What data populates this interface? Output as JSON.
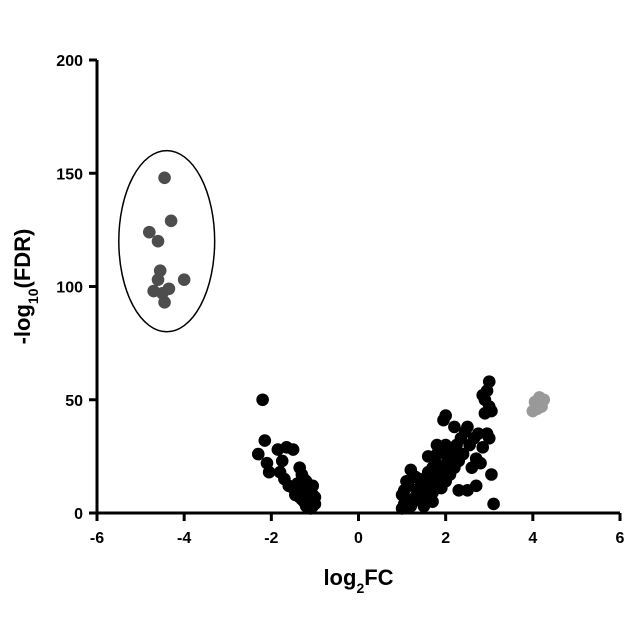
{
  "chart_data": {
    "type": "scatter",
    "title": "",
    "xlabel": {
      "base": "log",
      "sub": "2",
      "rest": "FC"
    },
    "ylabel": {
      "pre": "-log",
      "sub": "10",
      "post": "(FDR)"
    },
    "xlim": [
      -6,
      6
    ],
    "ylim": [
      0,
      200
    ],
    "xticks": [
      -6,
      -4,
      -2,
      0,
      2,
      4,
      6
    ],
    "yticks": [
      0,
      50,
      100,
      150,
      200
    ],
    "grid": false,
    "legend": "none",
    "annotations": [
      {
        "type": "ellipse",
        "center": [
          -4.4,
          120
        ],
        "radius": [
          2.2,
          40
        ],
        "outline": "#000000"
      }
    ],
    "series": [
      {
        "color": "#4d4d4d",
        "points": [
          [
            -4.45,
            148
          ],
          [
            -4.3,
            129
          ],
          [
            -4.8,
            124
          ],
          [
            -4.6,
            120
          ],
          [
            -4.55,
            107
          ],
          [
            -4.6,
            103
          ],
          [
            -4.0,
            103
          ],
          [
            -4.7,
            98
          ],
          [
            -4.5,
            97
          ],
          [
            -4.35,
            99
          ],
          [
            -4.45,
            93
          ]
        ]
      },
      {
        "color": "#000000",
        "points": [
          [
            -2.2,
            50
          ],
          [
            -2.15,
            32
          ],
          [
            -2.3,
            26
          ],
          [
            -2.1,
            22
          ],
          [
            -2.05,
            18
          ],
          [
            -1.85,
            28
          ],
          [
            -1.75,
            23
          ],
          [
            -1.65,
            29
          ],
          [
            -1.5,
            28
          ],
          [
            -1.8,
            18
          ],
          [
            -1.7,
            15
          ],
          [
            -1.6,
            12
          ],
          [
            -1.5,
            11
          ],
          [
            -1.4,
            13
          ],
          [
            -1.35,
            20
          ],
          [
            -1.3,
            17
          ],
          [
            -1.25,
            15
          ],
          [
            -1.2,
            14
          ],
          [
            -1.15,
            12
          ],
          [
            -1.1,
            11
          ],
          [
            -1.45,
            8
          ],
          [
            -1.35,
            7
          ],
          [
            -1.3,
            6
          ],
          [
            -1.25,
            5
          ],
          [
            -1.2,
            6
          ],
          [
            -1.15,
            4
          ],
          [
            -1.1,
            5
          ],
          [
            -1.05,
            3
          ],
          [
            -1.0,
            4
          ],
          [
            -1.1,
            2
          ],
          [
            -1.2,
            3
          ],
          [
            -1.3,
            9
          ],
          [
            -1.4,
            10
          ],
          [
            -1.05,
            8
          ],
          [
            -1.15,
            9
          ],
          [
            -1.25,
            11
          ],
          [
            -1.0,
            7
          ],
          [
            -1.05,
            12
          ],
          [
            -1.15,
            7
          ],
          [
            1.0,
            2
          ],
          [
            1.05,
            4
          ],
          [
            1.1,
            6
          ],
          [
            1.0,
            8
          ],
          [
            1.05,
            10
          ],
          [
            1.15,
            12
          ],
          [
            1.2,
            3
          ],
          [
            1.25,
            5
          ],
          [
            1.3,
            7
          ],
          [
            1.35,
            9
          ],
          [
            1.1,
            14
          ],
          [
            1.2,
            19
          ],
          [
            1.3,
            16
          ],
          [
            1.4,
            11
          ],
          [
            1.45,
            6
          ],
          [
            1.5,
            8
          ],
          [
            1.55,
            13
          ],
          [
            1.6,
            18
          ],
          [
            1.6,
            10
          ],
          [
            1.65,
            15
          ],
          [
            1.7,
            20
          ],
          [
            1.7,
            9
          ],
          [
            1.75,
            23
          ],
          [
            1.8,
            13
          ],
          [
            1.8,
            26
          ],
          [
            1.85,
            17
          ],
          [
            1.9,
            28
          ],
          [
            1.9,
            11
          ],
          [
            1.95,
            21
          ],
          [
            2.0,
            30
          ],
          [
            2.0,
            14
          ],
          [
            2.05,
            24
          ],
          [
            2.1,
            17
          ],
          [
            2.15,
            27
          ],
          [
            2.2,
            20
          ],
          [
            2.25,
            30
          ],
          [
            2.3,
            23
          ],
          [
            2.35,
            33
          ],
          [
            2.4,
            26
          ],
          [
            2.45,
            36
          ],
          [
            1.95,
            41
          ],
          [
            2.0,
            43
          ],
          [
            2.5,
            38
          ],
          [
            2.55,
            30
          ],
          [
            2.6,
            20
          ],
          [
            2.65,
            33
          ],
          [
            2.7,
            24
          ],
          [
            2.75,
            35
          ],
          [
            2.8,
            22
          ],
          [
            2.85,
            29
          ],
          [
            2.9,
            44
          ],
          [
            2.85,
            52
          ],
          [
            2.9,
            50
          ],
          [
            2.95,
            54
          ],
          [
            3.0,
            58
          ],
          [
            3.0,
            47
          ],
          [
            3.05,
            45
          ],
          [
            2.95,
            35
          ],
          [
            3.0,
            33
          ],
          [
            3.05,
            17
          ],
          [
            3.1,
            4
          ],
          [
            2.3,
            10
          ],
          [
            2.5,
            10
          ],
          [
            2.7,
            12
          ],
          [
            1.6,
            25
          ],
          [
            1.8,
            30
          ],
          [
            2.2,
            38
          ],
          [
            1.4,
            15
          ],
          [
            1.5,
            3
          ],
          [
            1.7,
            5
          ]
        ]
      },
      {
        "color": "#999999",
        "points": [
          [
            4.05,
            49
          ],
          [
            4.15,
            51
          ],
          [
            4.25,
            50
          ],
          [
            4.1,
            46
          ],
          [
            4.2,
            47
          ],
          [
            4.0,
            45
          ]
        ]
      }
    ]
  }
}
